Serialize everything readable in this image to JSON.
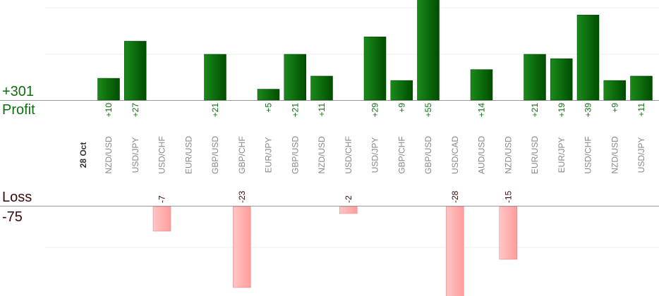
{
  "summary": {
    "profit_total": "+301",
    "profit_label": "Profit",
    "loss_label": "Loss",
    "loss_total": "-75"
  },
  "colors": {
    "profit_bar_light": "#1a8a1a",
    "profit_bar_dark": "#004d00",
    "profit_text": "#0d6e0d",
    "loss_bar_light": "#ffc6c6",
    "loss_bar_dark": "#ff9c9c",
    "loss_text": "#3a0a0a",
    "pair_text": "#888888"
  },
  "chart_data": {
    "type": "bar",
    "date_label": "28 Oct",
    "categories": [
      "NZD/USD",
      "USD/JPY",
      "USD/CHF",
      "EUR/USD",
      "GBP/USD",
      "GBP/CHF",
      "EUR/JPY",
      "GBP/USD",
      "NZD/USD",
      "USD/CHF",
      "USD/JPY",
      "GBP/CHF",
      "GBP/USD",
      "USD/CAD",
      "AUD/USD",
      "NZD/USD",
      "EUR/USD",
      "EUR/JPY",
      "USD/CHF",
      "NZD/USD",
      "USD/JPY"
    ],
    "profit_values": [
      10,
      27,
      null,
      null,
      21,
      null,
      5,
      21,
      11,
      null,
      29,
      9,
      55,
      null,
      14,
      null,
      21,
      19,
      39,
      9,
      11
    ],
    "profit_labels": [
      "+10",
      "+27",
      "",
      "",
      "+21",
      "",
      "+5",
      "+21",
      "+11",
      "",
      "+29",
      "+9",
      "+55",
      "",
      "+14",
      "",
      "+21",
      "+19",
      "+39",
      "+9",
      "+11"
    ],
    "loss_values": [
      null,
      null,
      -7,
      null,
      null,
      -23,
      null,
      null,
      null,
      -2,
      null,
      null,
      null,
      -28,
      null,
      -15,
      null,
      null,
      null,
      null,
      null
    ],
    "loss_labels": [
      "",
      "",
      "-7",
      "",
      "",
      "-23",
      "",
      "",
      "",
      "-2",
      "",
      "",
      "",
      "-28",
      "",
      "-15",
      "",
      "",
      "",
      "",
      ""
    ],
    "profit_ylim": [
      0,
      21
    ],
    "loss_ylim": [
      0,
      23
    ],
    "grid": true
  }
}
